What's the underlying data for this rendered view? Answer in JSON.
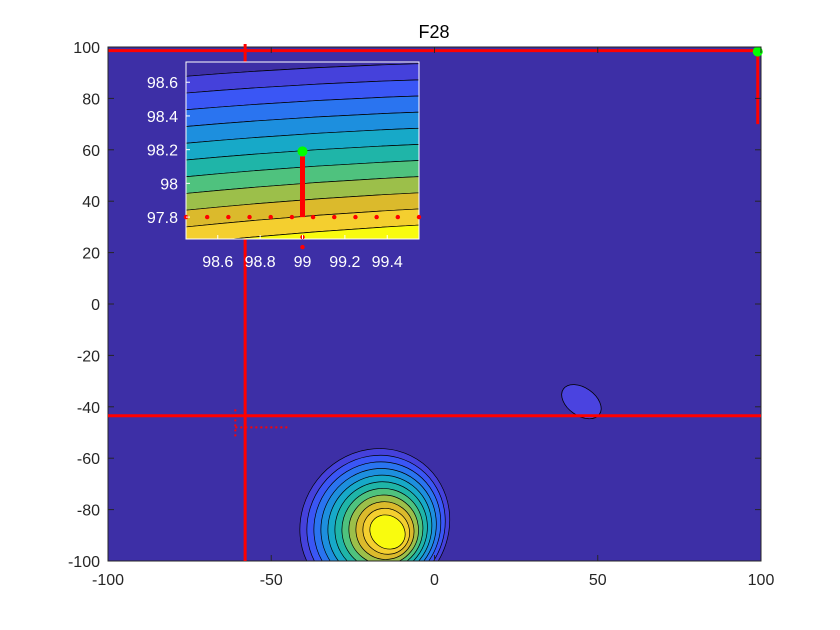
{
  "chart_data": [
    {
      "type": "contour",
      "title": "F28",
      "xlabel": "",
      "ylabel": "",
      "xlim": [
        -100,
        100
      ],
      "ylim": [
        -100,
        100
      ],
      "x_ticks": [
        "-100",
        "-50",
        "0",
        "50",
        "100"
      ],
      "y_ticks": [
        "-100",
        "-80",
        "-60",
        "-40",
        "-20",
        "0",
        "20",
        "40",
        "60",
        "80",
        "100"
      ],
      "background_color": "#3d2fa6",
      "features": {
        "main_basin_center": [
          -14,
          -89
        ],
        "small_basin_center": [
          45,
          -38
        ],
        "optimum_point": [
          99,
          98.2
        ],
        "horizontal_lines_y": [
          98.6,
          -43.5
        ],
        "vertical_line_x": -58,
        "right_segment": {
          "x": 99,
          "y_from": 70,
          "y_to": 98.2
        },
        "dotted_cross_center": [
          -61,
          -48
        ]
      },
      "colors": {
        "line": "#ff0000",
        "point": "#00ff00",
        "contour_line": "#000000"
      }
    },
    {
      "type": "contour",
      "title": "",
      "role": "zoomed inset",
      "xlim": [
        98.45,
        99.55
      ],
      "ylim": [
        97.67,
        98.72
      ],
      "x_ticks": [
        "98.6",
        "98.8",
        "99",
        "99.2",
        "99.4"
      ],
      "y_ticks": [
        "98.6",
        "98.4",
        "98.2",
        "98",
        "97.8"
      ],
      "optimum_point": [
        99,
        98.19
      ],
      "vertical_segment": {
        "x": 99,
        "y_from": 97.8,
        "y_to": 98.16
      },
      "dotted_row_y": 97.8,
      "dotted_row_x": [
        98.45,
        98.55,
        98.65,
        98.75,
        98.85,
        98.95,
        99.05,
        99.15,
        99.25,
        99.35,
        99.45,
        99.55
      ],
      "level_colors": [
        "#f9fb0e",
        "#f4cf2f",
        "#dbba2c",
        "#9cbf4a",
        "#4fc27e",
        "#1fb5a8",
        "#17a9c8",
        "#1d8fde",
        "#2a74f0",
        "#3a56f5",
        "#4541db",
        "#3d2fa6"
      ]
    }
  ]
}
